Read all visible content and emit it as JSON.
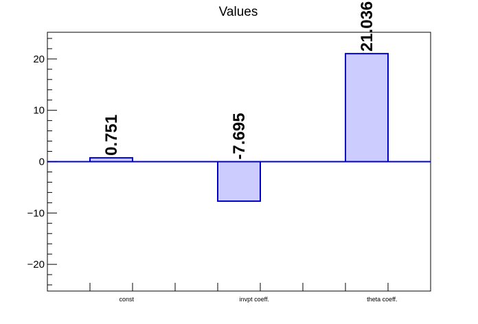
{
  "chart_data": {
    "type": "bar",
    "title": "Values",
    "categories": [
      "const",
      "invpt coeff.",
      "theta coeff."
    ],
    "values": [
      0.751,
      -7.695,
      21.036
    ],
    "data_labels": [
      "0.751",
      "-7.695",
      "21.036"
    ],
    "ylim": [
      -25.2,
      25.2
    ],
    "yticks": [
      -20,
      -10,
      0,
      10,
      20
    ],
    "ytick_labels": [
      "−20",
      "−10",
      "0",
      "10",
      "20"
    ],
    "xlabel": "",
    "ylabel": "",
    "grid": false,
    "colors": {
      "bar_fill": "#ccccff",
      "bar_stroke": "#0000cc",
      "axis": "#000000",
      "zero_line": "#0000cc"
    }
  }
}
